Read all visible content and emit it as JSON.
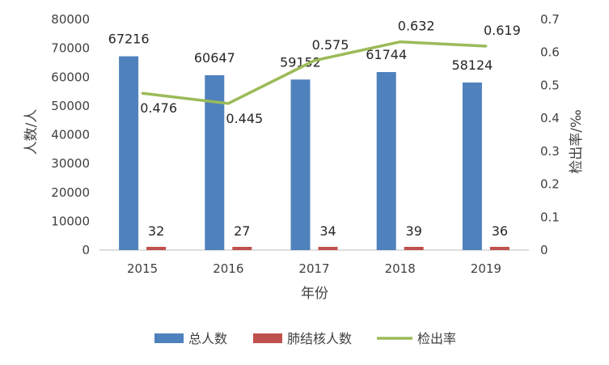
{
  "chart_data": {
    "type": "bar",
    "categories": [
      "2015",
      "2016",
      "2017",
      "2018",
      "2019"
    ],
    "series": [
      {
        "name": "总人数",
        "kind": "bar",
        "axis": "left",
        "color": "#4f81bd",
        "values": [
          67216,
          60647,
          59152,
          61744,
          58124
        ]
      },
      {
        "name": "肺结核人数",
        "kind": "bar",
        "axis": "left",
        "color": "#c0504d",
        "values": [
          32,
          27,
          34,
          39,
          36
        ]
      },
      {
        "name": "检出率",
        "kind": "line",
        "axis": "right",
        "color": "#9bbb59",
        "values": [
          0.476,
          0.445,
          0.575,
          0.632,
          0.619
        ]
      }
    ],
    "xlabel": "年份",
    "ylabel": "人数/人",
    "y2label": "检出率/‰",
    "ylim": [
      0,
      80000
    ],
    "yticks": [
      "0",
      "10000",
      "20000",
      "30000",
      "40000",
      "50000",
      "60000",
      "70000",
      "80000"
    ],
    "y2lim": [
      0,
      0.7
    ],
    "y2ticks": [
      "0",
      "0.1",
      "0.2",
      "0.3",
      "0.4",
      "0.5",
      "0.6",
      "0.7"
    ],
    "legend_position": "bottom",
    "grid": false
  }
}
